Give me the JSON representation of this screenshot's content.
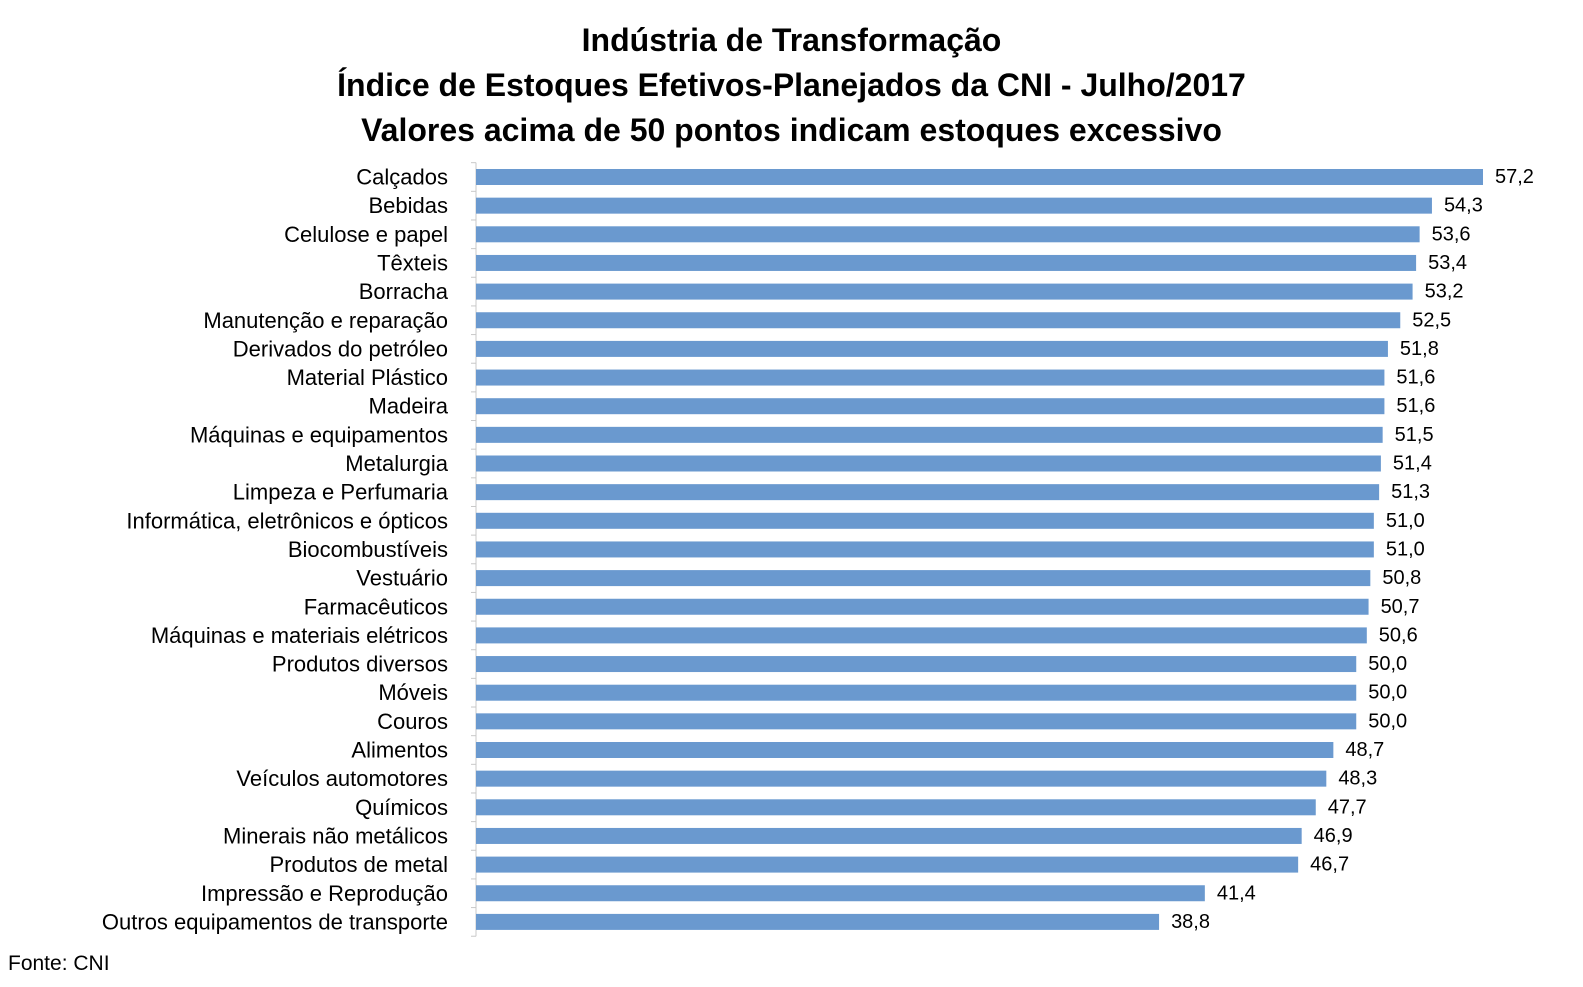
{
  "chart_data": {
    "type": "bar",
    "orientation": "horizontal",
    "title": [
      "Indústria de Transformação",
      "Índice de Estoques Efetivos-Planejados da CNI - Julho/2017",
      "Valores acima de 50 pontos indicam estoques excessivo"
    ],
    "xlabel": "",
    "ylabel": "",
    "xlim": [
      0,
      57.2
    ],
    "grid": false,
    "legend": "none",
    "bar_color": "#6a99cf",
    "categories": [
      "Calçados",
      "Bebidas",
      "Celulose e papel",
      "Têxteis",
      "Borracha",
      "Manutenção e reparação",
      "Derivados do petróleo",
      "Material Plástico",
      "Madeira",
      "Máquinas e equipamentos",
      "Metalurgia",
      "Limpeza e Perfumaria",
      "Informática, eletrônicos e ópticos",
      "Biocombustíveis",
      "Vestuário",
      "Farmacêuticos",
      "Máquinas e materiais elétricos",
      "Produtos diversos",
      "Móveis",
      "Couros",
      "Alimentos",
      "Veículos automotores",
      "Químicos",
      "Minerais não metálicos",
      "Produtos de metal",
      "Impressão e Reprodução",
      "Outros equipamentos de transporte"
    ],
    "values": [
      57.2,
      54.3,
      53.6,
      53.4,
      53.2,
      52.5,
      51.8,
      51.6,
      51.6,
      51.5,
      51.4,
      51.3,
      51.0,
      51.0,
      50.8,
      50.7,
      50.6,
      50.0,
      50.0,
      50.0,
      48.7,
      48.3,
      47.7,
      46.9,
      46.7,
      41.4,
      38.8
    ],
    "value_labels": [
      "57,2",
      "54,3",
      "53,6",
      "53,4",
      "53,2",
      "52,5",
      "51,8",
      "51,6",
      "51,6",
      "51,5",
      "51,4",
      "51,3",
      "51,0",
      "51,0",
      "50,8",
      "50,7",
      "50,6",
      "50,0",
      "50,0",
      "50,0",
      "48,7",
      "48,3",
      "47,7",
      "46,9",
      "46,7",
      "41,4",
      "38,8"
    ]
  },
  "source": "Fonte: CNI"
}
